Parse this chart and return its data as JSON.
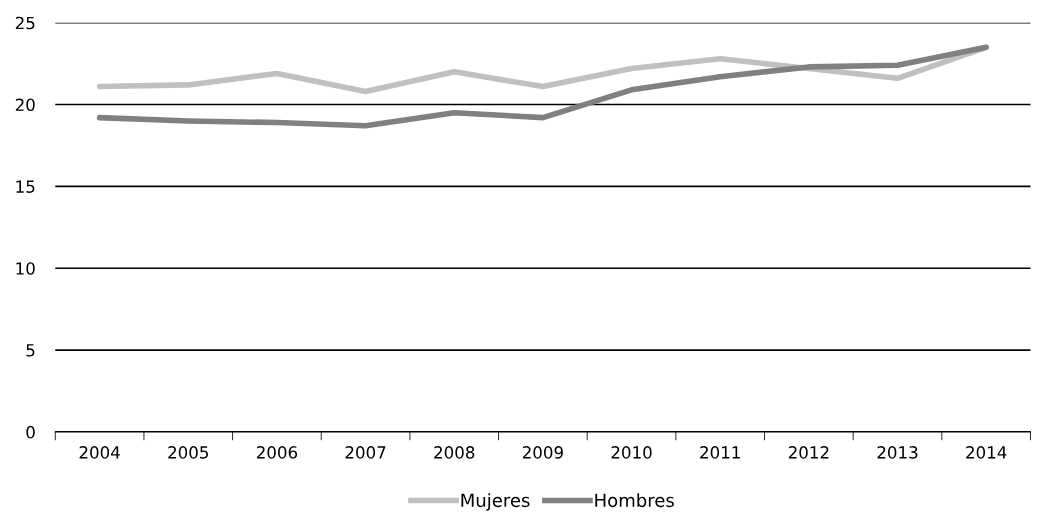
{
  "chart_data": {
    "type": "line",
    "categories": [
      "2004",
      "2005",
      "2006",
      "2007",
      "2008",
      "2009",
      "2010",
      "2011",
      "2012",
      "2013",
      "2014"
    ],
    "series": [
      {
        "name": "Mujeres",
        "color": "#c0c0c0",
        "values": [
          21.1,
          21.2,
          21.9,
          20.8,
          22.0,
          21.1,
          22.2,
          22.8,
          22.2,
          21.6,
          23.5
        ]
      },
      {
        "name": "Hombres",
        "color": "#808080",
        "values": [
          19.2,
          19.0,
          18.9,
          18.7,
          19.5,
          19.2,
          20.9,
          21.7,
          22.3,
          22.4,
          23.5
        ]
      }
    ],
    "ylim": [
      0,
      25
    ],
    "yticks": [
      0,
      5,
      10,
      15,
      20,
      25
    ],
    "grid": "y",
    "legend": "bottom",
    "marker": "none",
    "line_style": "solid"
  }
}
